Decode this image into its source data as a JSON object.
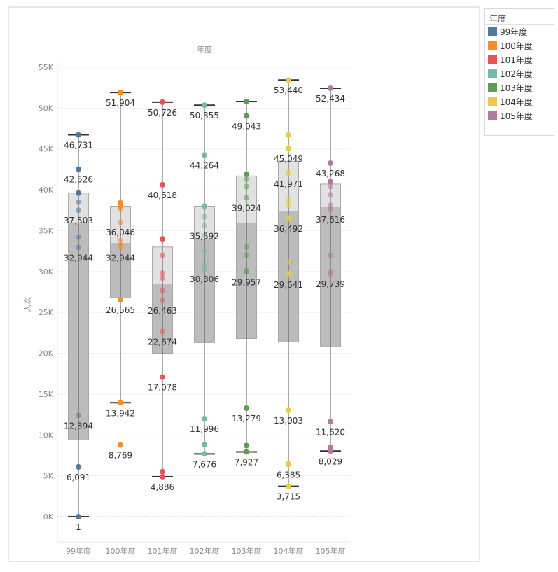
{
  "chart_data": {
    "type": "boxplot",
    "column_header": "年度",
    "ylabel": "人次",
    "ylim": [
      0,
      55000
    ],
    "y_ticks": [
      "0K",
      "5K",
      "10K",
      "15K",
      "20K",
      "25K",
      "30K",
      "35K",
      "40K",
      "45K",
      "50K",
      "55K"
    ],
    "categories": [
      "99年度",
      "100年度",
      "101年度",
      "102年度",
      "103年度",
      "104年度",
      "105年度"
    ],
    "colors": [
      "#4e79a7",
      "#f28e2b",
      "#e15759",
      "#76b7b2",
      "#59a14f",
      "#edc948",
      "#b07aa1"
    ],
    "series": [
      {
        "name": "99年度",
        "box": {
          "whisker_low": 1,
          "q1": 9400,
          "median": 36000,
          "q3": 39600,
          "whisker_high": 46731
        },
        "points": [
          46731,
          42526,
          39600,
          38500,
          37503,
          34200,
          32944,
          12394,
          6091,
          1
        ],
        "labels": [
          {
            "value": 46731,
            "text": "46,731"
          },
          {
            "value": 42526,
            "text": "42,526"
          },
          {
            "value": 37503,
            "text": "37,503"
          },
          {
            "value": 32944,
            "text": "32,944"
          },
          {
            "value": 12394,
            "text": "12,394"
          },
          {
            "value": 6091,
            "text": "6,091"
          },
          {
            "value": 1,
            "text": "1"
          }
        ]
      },
      {
        "name": "100年度",
        "box": {
          "whisker_low": 13942,
          "q1": 26800,
          "median": 33500,
          "q3": 38000,
          "whisker_high": 51904
        },
        "points": [
          51904,
          38400,
          38000,
          37600,
          36046,
          33800,
          33200,
          32944,
          26565,
          13942,
          8769
        ],
        "labels": [
          {
            "value": 51904,
            "text": "51,904"
          },
          {
            "value": 36046,
            "text": "36,046"
          },
          {
            "value": 32944,
            "text": "32,944"
          },
          {
            "value": 26565,
            "text": "26,565"
          },
          {
            "value": 13942,
            "text": "13,942"
          },
          {
            "value": 8769,
            "text": "8,769"
          }
        ]
      },
      {
        "name": "101年度",
        "box": {
          "whisker_low": 4886,
          "q1": 20000,
          "median": 28500,
          "q3": 33000,
          "whisker_high": 50726
        },
        "points": [
          50726,
          40618,
          34000,
          32000,
          29800,
          29200,
          27700,
          26463,
          22674,
          17078,
          5500,
          4886
        ],
        "labels": [
          {
            "value": 50726,
            "text": "50,726"
          },
          {
            "value": 40618,
            "text": "40,618"
          },
          {
            "value": 26463,
            "text": "26,463"
          },
          {
            "value": 22674,
            "text": "22,674"
          },
          {
            "value": 17078,
            "text": "17,078"
          },
          {
            "value": 4886,
            "text": "4,886"
          }
        ]
      },
      {
        "name": "102年度",
        "box": {
          "whisker_low": 7676,
          "q1": 21300,
          "median": 34000,
          "q3": 38000,
          "whisker_high": 50355
        },
        "points": [
          50355,
          44264,
          38000,
          36700,
          35592,
          34400,
          32500,
          30800,
          30306,
          11996,
          8800,
          7676
        ],
        "labels": [
          {
            "value": 50355,
            "text": "50,355"
          },
          {
            "value": 44264,
            "text": "44,264"
          },
          {
            "value": 35592,
            "text": "35,592"
          },
          {
            "value": 30306,
            "text": "30,306"
          },
          {
            "value": 11996,
            "text": "11,996"
          },
          {
            "value": 7676,
            "text": "7,676"
          }
        ]
      },
      {
        "name": "103年度",
        "box": {
          "whisker_low": 7927,
          "q1": 21800,
          "median": 36000,
          "q3": 41700,
          "whisker_high": 50800
        },
        "points": [
          50800,
          49043,
          41900,
          41300,
          40400,
          39024,
          33000,
          32000,
          30100,
          29957,
          13279,
          8700,
          7927
        ],
        "labels": [
          {
            "value": 49043,
            "text": "49,043"
          },
          {
            "value": 39024,
            "text": "39,024"
          },
          {
            "value": 29957,
            "text": "29,957"
          },
          {
            "value": 13279,
            "text": "13,279"
          },
          {
            "value": 7927,
            "text": "7,927"
          }
        ]
      },
      {
        "name": "104年度",
        "box": {
          "whisker_low": 3715,
          "q1": 21400,
          "median": 37400,
          "q3": 43500,
          "whisker_high": 53440
        },
        "points": [
          53440,
          46700,
          45100,
          45049,
          42100,
          41971,
          38800,
          38200,
          36600,
          36492,
          31200,
          29800,
          29641,
          13003,
          6500,
          6385,
          3715
        ],
        "labels": [
          {
            "value": 53440,
            "text": "53,440"
          },
          {
            "value": 45049,
            "text": "45,049"
          },
          {
            "value": 41971,
            "text": "41,971"
          },
          {
            "value": 36492,
            "text": "36,492"
          },
          {
            "value": 29641,
            "text": "29,641"
          },
          {
            "value": 13003,
            "text": "13,003"
          },
          {
            "value": 6385,
            "text": "6,385"
          },
          {
            "value": 3715,
            "text": "3,715"
          }
        ]
      },
      {
        "name": "105年度",
        "box": {
          "whisker_low": 8029,
          "q1": 20800,
          "median": 37900,
          "q3": 40700,
          "whisker_high": 52434
        },
        "points": [
          52434,
          43268,
          41000,
          40400,
          39400,
          38100,
          37616,
          32000,
          30000,
          29739,
          11620,
          8500,
          8029
        ],
        "labels": [
          {
            "value": 52434,
            "text": "52,434"
          },
          {
            "value": 43268,
            "text": "43,268"
          },
          {
            "value": 37616,
            "text": "37,616"
          },
          {
            "value": 29739,
            "text": "29,739"
          },
          {
            "value": 11620,
            "text": "11,620"
          },
          {
            "value": 8029,
            "text": "8,029"
          }
        ]
      }
    ],
    "legend": {
      "title": "年度",
      "position": "right",
      "items": [
        "99年度",
        "100年度",
        "101年度",
        "102年度",
        "103年度",
        "104年度",
        "105年度"
      ]
    },
    "grid": true
  }
}
